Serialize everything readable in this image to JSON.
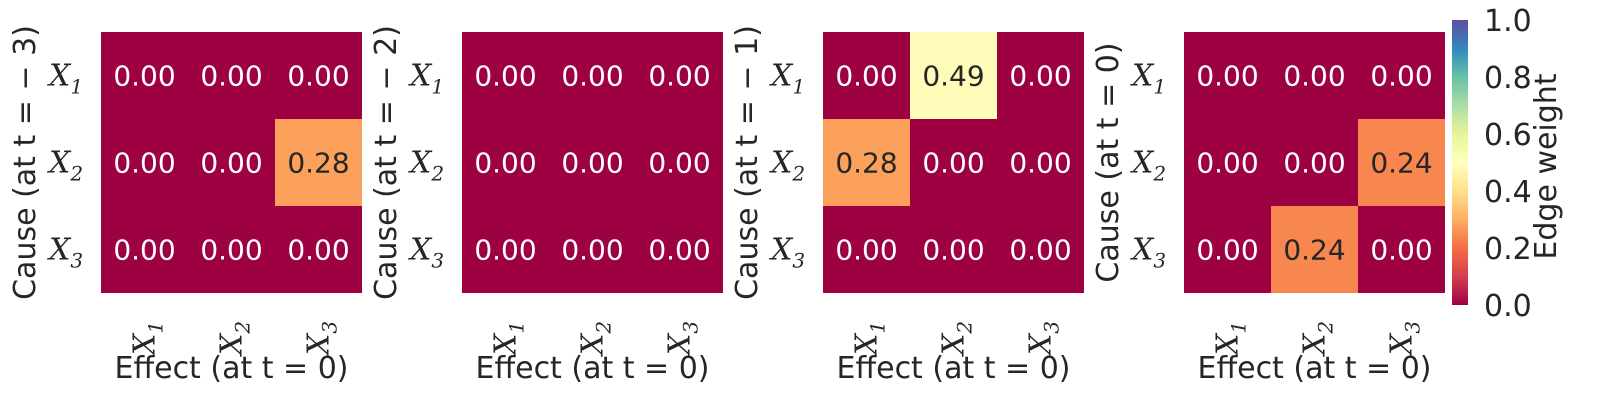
{
  "chart_data": [
    {
      "type": "heatmap",
      "ylabel": "Cause (at t = − 3)",
      "xlabel": "Effect (at t = 0)",
      "row_labels": [
        "X1",
        "X2",
        "X3"
      ],
      "col_labels": [
        "X1",
        "X2",
        "X3"
      ],
      "values": [
        [
          0.0,
          0.0,
          0.0
        ],
        [
          0.0,
          0.0,
          0.28
        ],
        [
          0.0,
          0.0,
          0.0
        ]
      ],
      "value_labels": [
        [
          "0.00",
          "0.00",
          "0.00"
        ],
        [
          "0.00",
          "0.00",
          "0.28"
        ],
        [
          "0.00",
          "0.00",
          "0.00"
        ]
      ]
    },
    {
      "type": "heatmap",
      "ylabel": "Cause (at t = − 2)",
      "xlabel": "Effect (at t = 0)",
      "row_labels": [
        "X1",
        "X2",
        "X3"
      ],
      "col_labels": [
        "X1",
        "X2",
        "X3"
      ],
      "values": [
        [
          0.0,
          0.0,
          0.0
        ],
        [
          0.0,
          0.0,
          0.0
        ],
        [
          0.0,
          0.0,
          0.0
        ]
      ],
      "value_labels": [
        [
          "0.00",
          "0.00",
          "0.00"
        ],
        [
          "0.00",
          "0.00",
          "0.00"
        ],
        [
          "0.00",
          "0.00",
          "0.00"
        ]
      ]
    },
    {
      "type": "heatmap",
      "ylabel": "Cause (at t = − 1)",
      "xlabel": "Effect (at t = 0)",
      "row_labels": [
        "X1",
        "X2",
        "X3"
      ],
      "col_labels": [
        "X1",
        "X2",
        "X3"
      ],
      "values": [
        [
          0.0,
          0.49,
          0.0
        ],
        [
          0.28,
          0.0,
          0.0
        ],
        [
          0.0,
          0.0,
          0.0
        ]
      ],
      "value_labels": [
        [
          "0.00",
          "0.49",
          "0.00"
        ],
        [
          "0.28",
          "0.00",
          "0.00"
        ],
        [
          "0.00",
          "0.00",
          "0.00"
        ]
      ]
    },
    {
      "type": "heatmap",
      "ylabel": "Cause (at t = 0)",
      "xlabel": "Effect (at t = 0)",
      "row_labels": [
        "X1",
        "X2",
        "X3"
      ],
      "col_labels": [
        "X1",
        "X2",
        "X3"
      ],
      "values": [
        [
          0.0,
          0.0,
          0.0
        ],
        [
          0.0,
          0.0,
          0.24
        ],
        [
          0.0,
          0.24,
          0.0
        ]
      ],
      "value_labels": [
        [
          "0.00",
          "0.00",
          "0.00"
        ],
        [
          "0.00",
          "0.00",
          "0.24"
        ],
        [
          "0.00",
          "0.24",
          "0.00"
        ]
      ]
    }
  ],
  "colorbar": {
    "label": "Edge weight",
    "range": [
      0.0,
      1.0
    ],
    "ticks": [
      "0.0",
      "0.2",
      "0.4",
      "0.6",
      "0.8",
      "1.0"
    ],
    "colormap": "Spectral"
  }
}
